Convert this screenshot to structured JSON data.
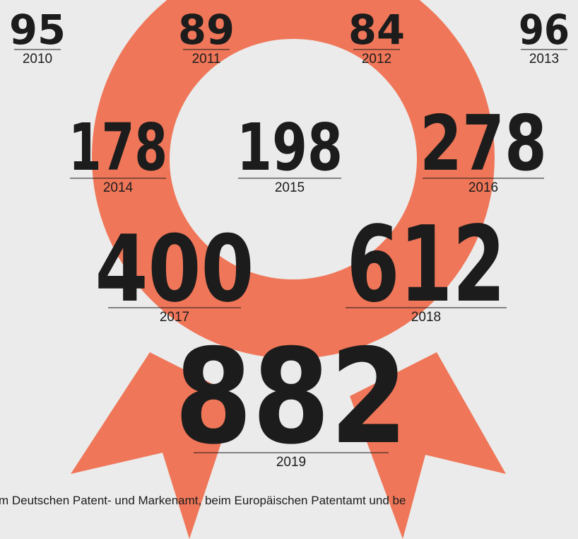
{
  "items": [
    {
      "value": 95,
      "year": "2010"
    },
    {
      "value": 89,
      "year": "2011"
    },
    {
      "value": 84,
      "year": "2012"
    },
    {
      "value": 96,
      "year": "2013"
    },
    {
      "value": 178,
      "year": "2014"
    },
    {
      "value": 198,
      "year": "2015"
    },
    {
      "value": 278,
      "year": "2016"
    },
    {
      "value": 400,
      "year": "2017"
    },
    {
      "value": 612,
      "year": "2018"
    },
    {
      "value": 882,
      "year": "2019"
    }
  ],
  "footnote": "m Deutschen Patent- und Markenamt, beim Europäischen Patentamt und be"
}
